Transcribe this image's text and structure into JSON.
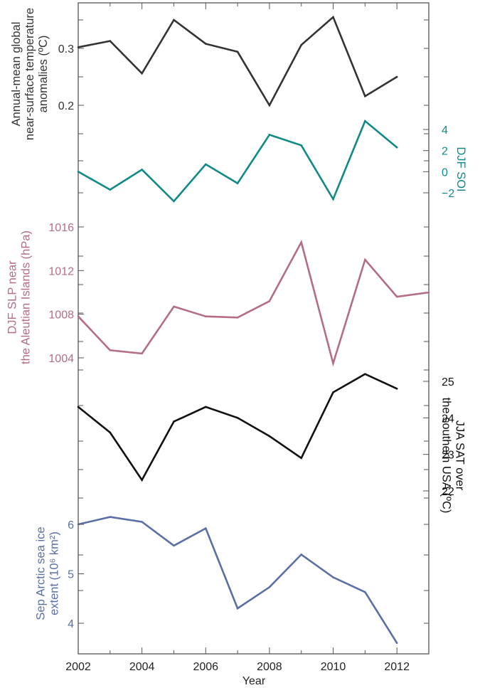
{
  "chart_data": {
    "type": "line",
    "x": [
      2002,
      2003,
      2004,
      2005,
      2006,
      2007,
      2008,
      2009,
      2010,
      2011,
      2012
    ],
    "xlim": [
      2002,
      2013
    ],
    "x_ticks": [
      "2002",
      "2004",
      "2006",
      "2008",
      "2010",
      "2012"
    ],
    "xlabel": "Year",
    "grid": false,
    "panels": [
      {
        "id": "temp",
        "label_lines": [
          "Annual-mean global",
          "near-surface temperature",
          "anomalies (ºC)"
        ],
        "axis_side": "left",
        "color": "#333333",
        "ylim": [
          0.2,
          0.3
        ],
        "ticks": [
          {
            "v": 0.2,
            "label": "0.2"
          },
          {
            "v": 0.3,
            "label": "0.3"
          }
        ],
        "x": [
          2002,
          2003,
          2004,
          2005,
          2006,
          2007,
          2008,
          2009,
          2010,
          2011,
          2012
        ],
        "values": [
          0.302,
          0.313,
          0.256,
          0.35,
          0.308,
          0.294,
          0.2,
          0.306,
          0.355,
          0.216,
          0.25
        ]
      },
      {
        "id": "soi",
        "label_lines": [
          "DJF SOI"
        ],
        "axis_side": "right",
        "color": "#0f8a86",
        "ylim": [
          -2,
          4
        ],
        "ticks": [
          {
            "v": 4,
            "label": "4"
          },
          {
            "v": 2,
            "label": "2"
          },
          {
            "v": 0,
            "label": "0"
          },
          {
            "v": -2,
            "label": "−2"
          }
        ],
        "x": [
          2002,
          2003,
          2004,
          2005,
          2006,
          2007,
          2008,
          2009,
          2010,
          2011,
          2012
        ],
        "values": [
          0.0,
          -1.7,
          0.2,
          -2.8,
          0.7,
          -1.1,
          3.5,
          2.5,
          -2.6,
          4.8,
          2.3
        ]
      },
      {
        "id": "slp",
        "label_lines": [
          "DJF SLP near",
          "the Aleutian Islands (hPa)"
        ],
        "axis_side": "left",
        "color": "#b46d86",
        "ylim": [
          1004,
          1016
        ],
        "ticks": [
          {
            "v": 1016,
            "label": "1016"
          },
          {
            "v": 1012,
            "label": "1012"
          },
          {
            "v": 1008,
            "label": "1008"
          },
          {
            "v": 1004,
            "label": "1004"
          }
        ],
        "x": [
          2002,
          2003,
          2004,
          2005,
          2006,
          2007,
          2008,
          2009,
          2010,
          2011,
          2012,
          2013
        ],
        "values": [
          1007.8,
          1004.7,
          1004.4,
          1008.7,
          1007.8,
          1007.7,
          1009.2,
          1014.6,
          1003.5,
          1013.0,
          1009.6,
          1010.0
        ]
      },
      {
        "id": "sat",
        "label_lines": [
          "JJA SAT over",
          "the southern USA (ºC)"
        ],
        "axis_side": "right",
        "color": "#111111",
        "ylim": [
          22,
          25
        ],
        "ticks": [
          {
            "v": 25,
            "label": "25"
          },
          {
            "v": 24,
            "label": "24"
          },
          {
            "v": 23,
            "label": "23"
          },
          {
            "v": 22,
            "label": "22"
          }
        ],
        "x": [
          2002,
          2003,
          2004,
          2005,
          2006,
          2007,
          2008,
          2009,
          2010,
          2011,
          2012
        ],
        "values": [
          24.3,
          23.6,
          22.3,
          23.9,
          24.3,
          24.0,
          23.5,
          22.9,
          24.7,
          25.2,
          24.8
        ]
      },
      {
        "id": "ice",
        "label_lines": [
          "Sep Arctic sea ice",
          "extent (10⁶ km²)"
        ],
        "axis_side": "left",
        "color": "#5a6fa6",
        "ylim": [
          4,
          6
        ],
        "ticks": [
          {
            "v": 6,
            "label": "6"
          },
          {
            "v": 5,
            "label": "5"
          },
          {
            "v": 4,
            "label": "4"
          }
        ],
        "x": [
          2002,
          2003,
          2004,
          2005,
          2006,
          2007,
          2008,
          2009,
          2010,
          2011,
          2012
        ],
        "values": [
          6.0,
          6.15,
          6.05,
          5.57,
          5.92,
          4.3,
          4.73,
          5.39,
          4.93,
          4.63,
          3.6
        ]
      }
    ]
  }
}
